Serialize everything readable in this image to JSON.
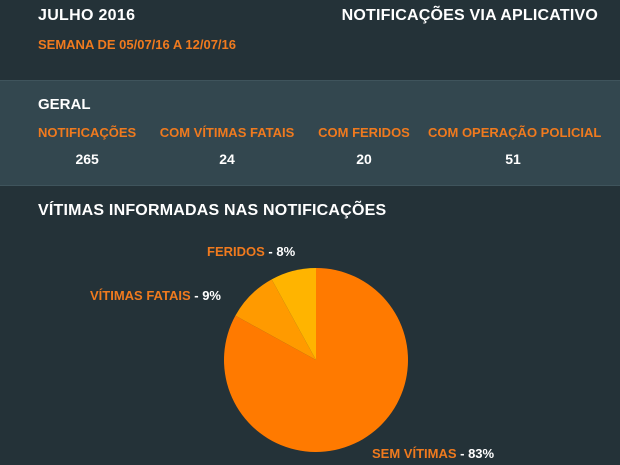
{
  "header": {
    "month": "JULHO 2016",
    "title": "NOTIFICAÇÕES VIA APLICATIVO",
    "week": "SEMANA DE 05/07/16 A 12/07/16"
  },
  "summary": {
    "title": "GERAL",
    "stats": [
      {
        "label": "NOTIFICAÇÕES",
        "value": "265"
      },
      {
        "label": "COM VÍTIMAS FATAIS",
        "value": "24"
      },
      {
        "label": "COM FERIDOS",
        "value": "20"
      },
      {
        "label": "COM OPERAÇÃO POLICIAL",
        "value": "51"
      }
    ]
  },
  "colors": {
    "background": "#243238",
    "panel": "#33474f",
    "accent": "#f07a1e"
  },
  "chart_data": {
    "type": "pie",
    "title": "VÍTIMAS INFORMADAS NAS NOTIFICAÇÕES",
    "slices": [
      {
        "name": "SEM VÍTIMAS",
        "value": 83,
        "value_label": "83%",
        "color": "#ff7a00"
      },
      {
        "name": "VÍTIMAS FATAIS",
        "value": 9,
        "value_label": "9%",
        "color": "#ff9a00"
      },
      {
        "name": "FERIDOS",
        "value": 8,
        "value_label": "8%",
        "color": "#ffb400"
      }
    ]
  }
}
